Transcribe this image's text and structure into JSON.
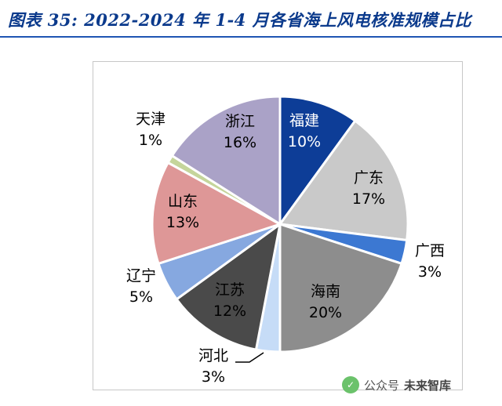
{
  "header": {
    "title": "图表 35:  2022-2024 年 1-4 月各省海上风电核准规模占比"
  },
  "watermark": {
    "badge": "✓",
    "public_label": "公众号",
    "brand": "未来智库"
  },
  "colors": {
    "title": "#0b3a8c",
    "rule": "#1f55b3"
  },
  "chart_data": {
    "type": "pie",
    "title": "2022-2024 年 1-4 月各省海上风电核准规模占比",
    "unit": "%",
    "start_angle_deg": 0,
    "direction": "clockwise",
    "slices": [
      {
        "label": "福建",
        "value": 10,
        "display": "10%",
        "color": "#0d3d97",
        "text_color": "#ffffff"
      },
      {
        "label": "广东",
        "value": 17,
        "display": "17%",
        "color": "#c9c9c9",
        "text_color": "#000000"
      },
      {
        "label": "广西",
        "value": 3,
        "display": "3%",
        "color": "#3c78d2",
        "text_color": "#000000"
      },
      {
        "label": "海南",
        "value": 20,
        "display": "20%",
        "color": "#8d8d8d",
        "text_color": "#000000"
      },
      {
        "label": "河北",
        "value": 3,
        "display": "3%",
        "color": "#c6dcf7",
        "text_color": "#000000"
      },
      {
        "label": "江苏",
        "value": 12,
        "display": "12%",
        "color": "#4a4a4a",
        "text_color": "#000000"
      },
      {
        "label": "辽宁",
        "value": 5,
        "display": "5%",
        "color": "#86a8e0",
        "text_color": "#000000"
      },
      {
        "label": "山东",
        "value": 13,
        "display": "13%",
        "color": "#de9797",
        "text_color": "#000000"
      },
      {
        "label": "天津",
        "value": 1,
        "display": "1%",
        "color": "#c5d59b",
        "text_color": "#000000"
      },
      {
        "label": "浙江",
        "value": 16,
        "display": "16%",
        "color": "#aaa2c7",
        "text_color": "#000000"
      }
    ]
  }
}
